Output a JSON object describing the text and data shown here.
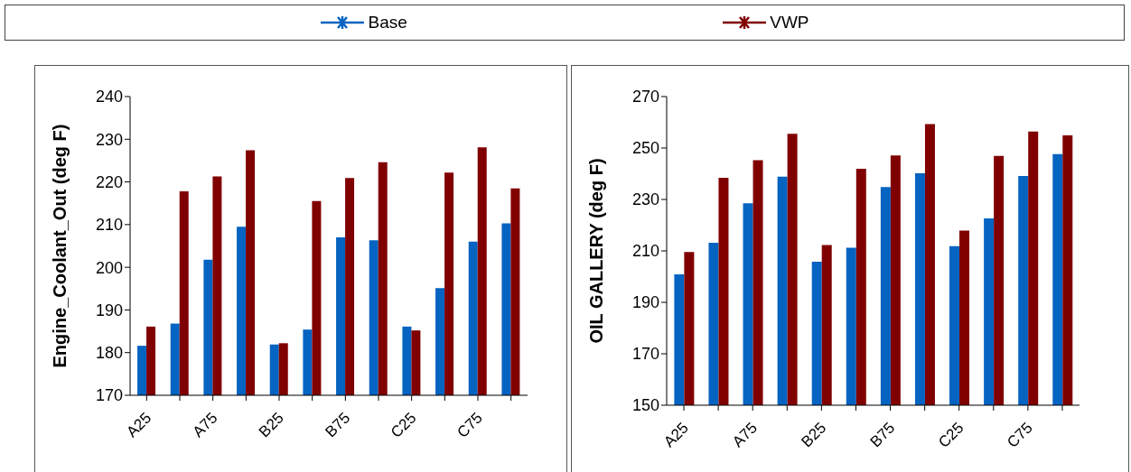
{
  "chart_data": [
    {
      "type": "bar",
      "ylabel": "Engine_Coolant_Out (deg F)",
      "categories": [
        "A25",
        null,
        "A75",
        null,
        "B25",
        null,
        "B75",
        null,
        "C25",
        null,
        "C75",
        null
      ],
      "legend": "top",
      "series": [
        {
          "name": "Base",
          "color": "#0563c1",
          "values": [
            181.6,
            186.8,
            201.8,
            209.5,
            181.9,
            185.4,
            207.0,
            206.3,
            186.1,
            195.1,
            206.0,
            210.3
          ]
        },
        {
          "name": "VWP",
          "color": "#800000",
          "values": [
            186.1,
            217.8,
            221.3,
            227.4,
            182.2,
            215.5,
            220.9,
            224.6,
            185.2,
            222.2,
            228.1,
            218.5
          ]
        }
      ],
      "ylim": [
        170,
        240
      ],
      "yticks": [
        170,
        180,
        190,
        200,
        210,
        220,
        230,
        240
      ],
      "grid": false
    },
    {
      "type": "bar",
      "ylabel": "OIL GALLERY (deg F)",
      "categories": [
        "A25",
        null,
        "A75",
        null,
        "B25",
        null,
        "B75",
        null,
        "C25",
        null,
        "C75",
        null
      ],
      "series": [
        {
          "color": "#0563c1",
          "values": [
            200.9,
            213.2,
            228.5,
            238.9,
            205.8,
            211.2,
            234.8,
            240.2,
            211.8,
            222.6,
            239.1,
            247.6
          ]
        },
        {
          "color": "#800000",
          "values": [
            209.6,
            238.4,
            245.3,
            255.5,
            212.3,
            241.9,
            247.1,
            259.3,
            217.9,
            246.9,
            256.4,
            254.9
          ]
        }
      ],
      "ylim": [
        150,
        270
      ],
      "yticks": [
        150,
        170,
        190,
        210,
        230,
        250,
        270
      ],
      "grid": false
    }
  ]
}
